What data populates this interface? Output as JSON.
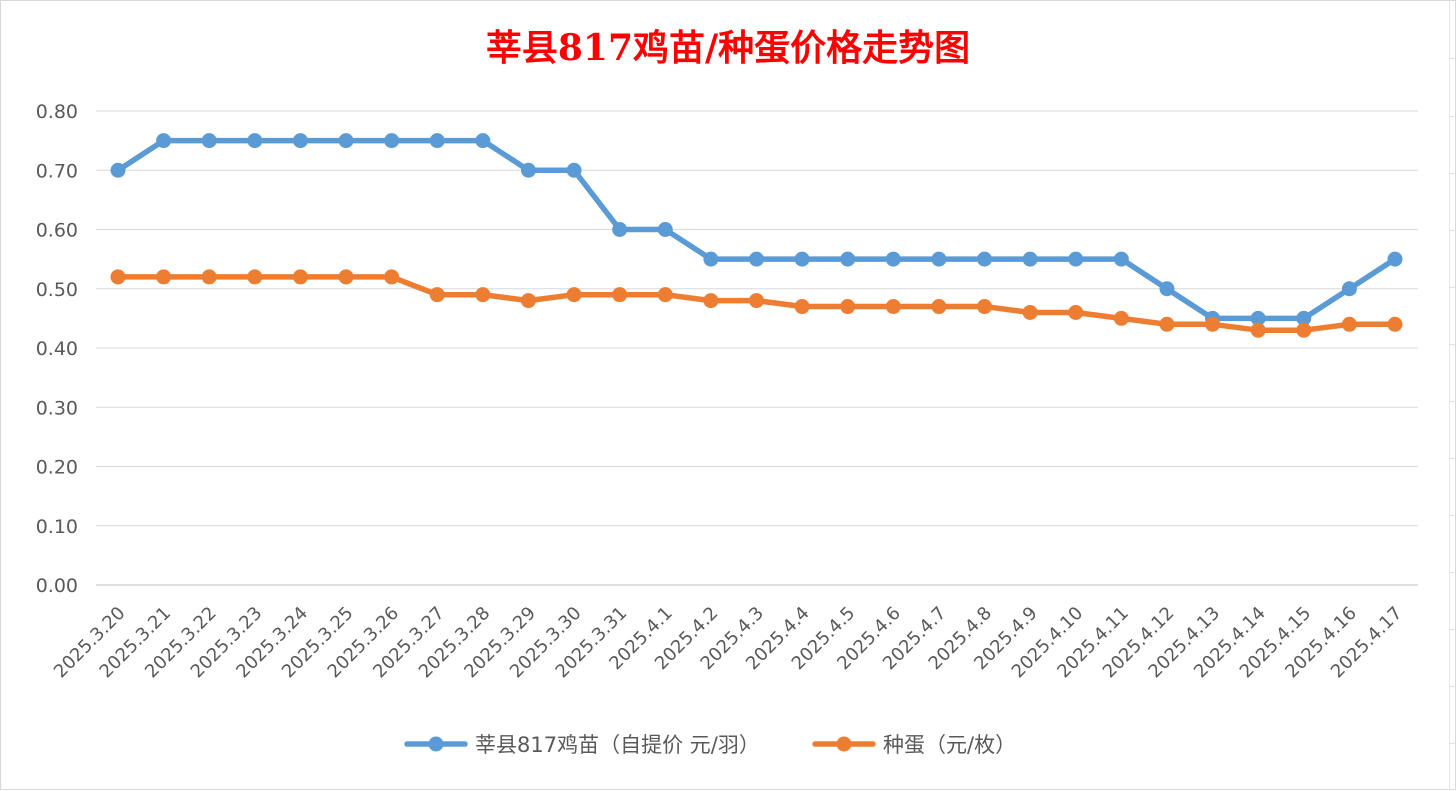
{
  "chart_data": {
    "type": "line",
    "title": "莘县817鸡苗/种蛋价格走势图",
    "xlabel": "",
    "ylabel": "",
    "ylim": [
      0,
      0.8
    ],
    "yticks": [
      "0.00",
      "0.10",
      "0.20",
      "0.30",
      "0.40",
      "0.50",
      "0.60",
      "0.70",
      "0.80"
    ],
    "grid": true,
    "legend_position": "bottom",
    "categories": [
      "2025.3.20",
      "2025.3.21",
      "2025.3.22",
      "2025.3.23",
      "2025.3.24",
      "2025.3.25",
      "2025.3.26",
      "2025.3.27",
      "2025.3.28",
      "2025.3.29",
      "2025.3.30",
      "2025.3.31",
      "2025.4.1",
      "2025.4.2",
      "2025.4.3",
      "2025.4.4",
      "2025.4.5",
      "2025.4.6",
      "2025.4.7",
      "2025.4.8",
      "2025.4.9",
      "2025.4.10",
      "2025.4.11",
      "2025.4.12",
      "2025.4.13",
      "2025.4.14",
      "2025.4.15",
      "2025.4.16",
      "2025.4.17"
    ],
    "series": [
      {
        "name": "莘县817鸡苗（自提价 元/羽）",
        "color": "#5b9bd5",
        "values": [
          0.7,
          0.75,
          0.75,
          0.75,
          0.75,
          0.75,
          0.75,
          0.75,
          0.75,
          0.7,
          0.7,
          0.6,
          0.6,
          0.55,
          0.55,
          0.55,
          0.55,
          0.55,
          0.55,
          0.55,
          0.55,
          0.55,
          0.55,
          0.5,
          0.45,
          0.45,
          0.45,
          0.5,
          0.55
        ]
      },
      {
        "name": "种蛋（元/枚）",
        "color": "#ed7d31",
        "values": [
          0.52,
          0.52,
          0.52,
          0.52,
          0.52,
          0.52,
          0.52,
          0.49,
          0.49,
          0.48,
          0.49,
          0.49,
          0.49,
          0.48,
          0.48,
          0.47,
          0.47,
          0.47,
          0.47,
          0.47,
          0.46,
          0.46,
          0.45,
          0.44,
          0.44,
          0.43,
          0.43,
          0.44,
          0.44
        ]
      }
    ],
    "title_color": "#ff0000"
  }
}
